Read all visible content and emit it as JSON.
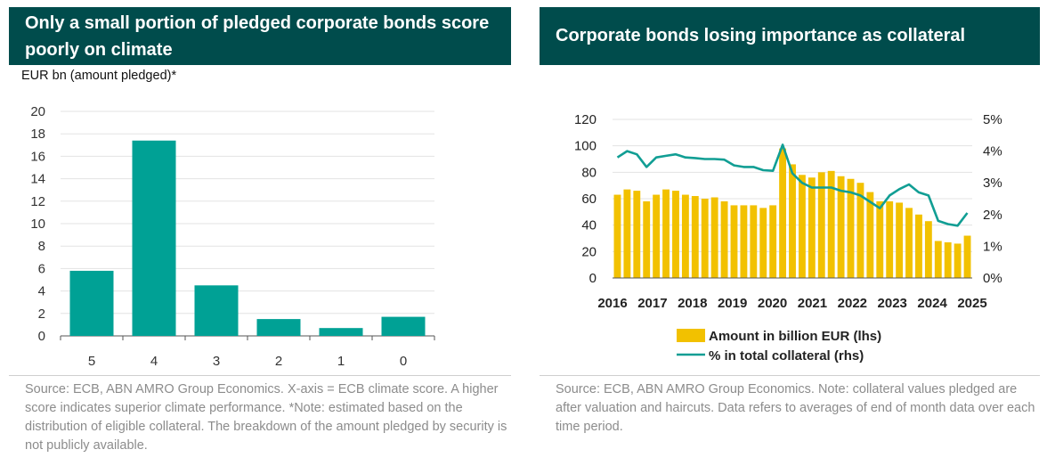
{
  "left_panel": {
    "title": "Only a small portion of pledged corporate bonds score poorly on climate",
    "unit_label": "EUR bn (amount pledged)*",
    "source": "Source: ECB, ABN AMRO Group Economics. X-axis = ECB climate score. A higher score indicates superior climate performance. *Note: estimated based on the distribution of eligible collateral. The breakdown of the amount pledged by security is not publicly available."
  },
  "right_panel": {
    "title": "Corporate bonds losing importance as collateral",
    "source": "Source: ECB, ABN AMRO Group Economics. Note: collateral values pledged are after valuation and haircuts. Data refers to averages of end of month data over each time period."
  },
  "colors": {
    "teal_bar": "#00a195",
    "teal_line": "#119e94",
    "gold_bar": "#f2c100",
    "title_bg": "#004c4c"
  },
  "chart_data": [
    {
      "type": "bar",
      "title": "Only a small portion of pledged corporate bonds score poorly on climate",
      "ylabel": "EUR bn (amount pledged)*",
      "categories": [
        "5",
        "4",
        "3",
        "2",
        "1",
        "0"
      ],
      "values": [
        5.8,
        17.4,
        4.5,
        1.5,
        0.7,
        1.7
      ],
      "ylim": [
        0,
        20
      ],
      "yticks": [
        "0",
        "2",
        "4",
        "6",
        "8",
        "10",
        "12",
        "14",
        "16",
        "18",
        "20"
      ],
      "grid": true
    },
    {
      "type": "bar+line",
      "title": "Corporate bonds losing importance as collateral",
      "x_ticks": [
        "2016",
        "2017",
        "2018",
        "2019",
        "2020",
        "2021",
        "2022",
        "2023",
        "2024",
        "2025"
      ],
      "y_left_ticks": [
        "0",
        "20",
        "40",
        "60",
        "80",
        "100",
        "120"
      ],
      "y_right_ticks": [
        "0%",
        "1%",
        "2%",
        "3%",
        "4%",
        "5%"
      ],
      "ylim_left": [
        0,
        120
      ],
      "ylim_right": [
        0,
        5
      ],
      "legend_position": "bottom",
      "grid": true,
      "series": [
        {
          "name": "Amount in billion EUR (lhs)",
          "type": "bar",
          "axis": "left",
          "values": [
            63,
            67,
            66,
            58,
            63,
            67,
            66,
            63,
            62,
            60,
            61,
            58,
            55,
            55,
            55,
            53,
            55,
            98,
            86,
            78,
            76,
            80,
            81,
            77,
            75,
            72,
            65,
            58,
            58,
            57,
            53,
            48,
            43,
            28,
            27,
            26,
            32
          ]
        },
        {
          "name": "% in total collateral (rhs)",
          "type": "line",
          "axis": "right",
          "values": [
            3.8,
            4.0,
            3.9,
            3.5,
            3.8,
            3.85,
            3.9,
            3.8,
            3.78,
            3.75,
            3.75,
            3.73,
            3.55,
            3.5,
            3.5,
            3.4,
            3.38,
            4.2,
            3.3,
            3.0,
            2.85,
            2.85,
            2.85,
            2.75,
            2.7,
            2.6,
            2.4,
            2.2,
            2.6,
            2.8,
            2.95,
            2.7,
            2.6,
            1.8,
            1.7,
            1.65,
            2.05
          ]
        }
      ]
    }
  ]
}
